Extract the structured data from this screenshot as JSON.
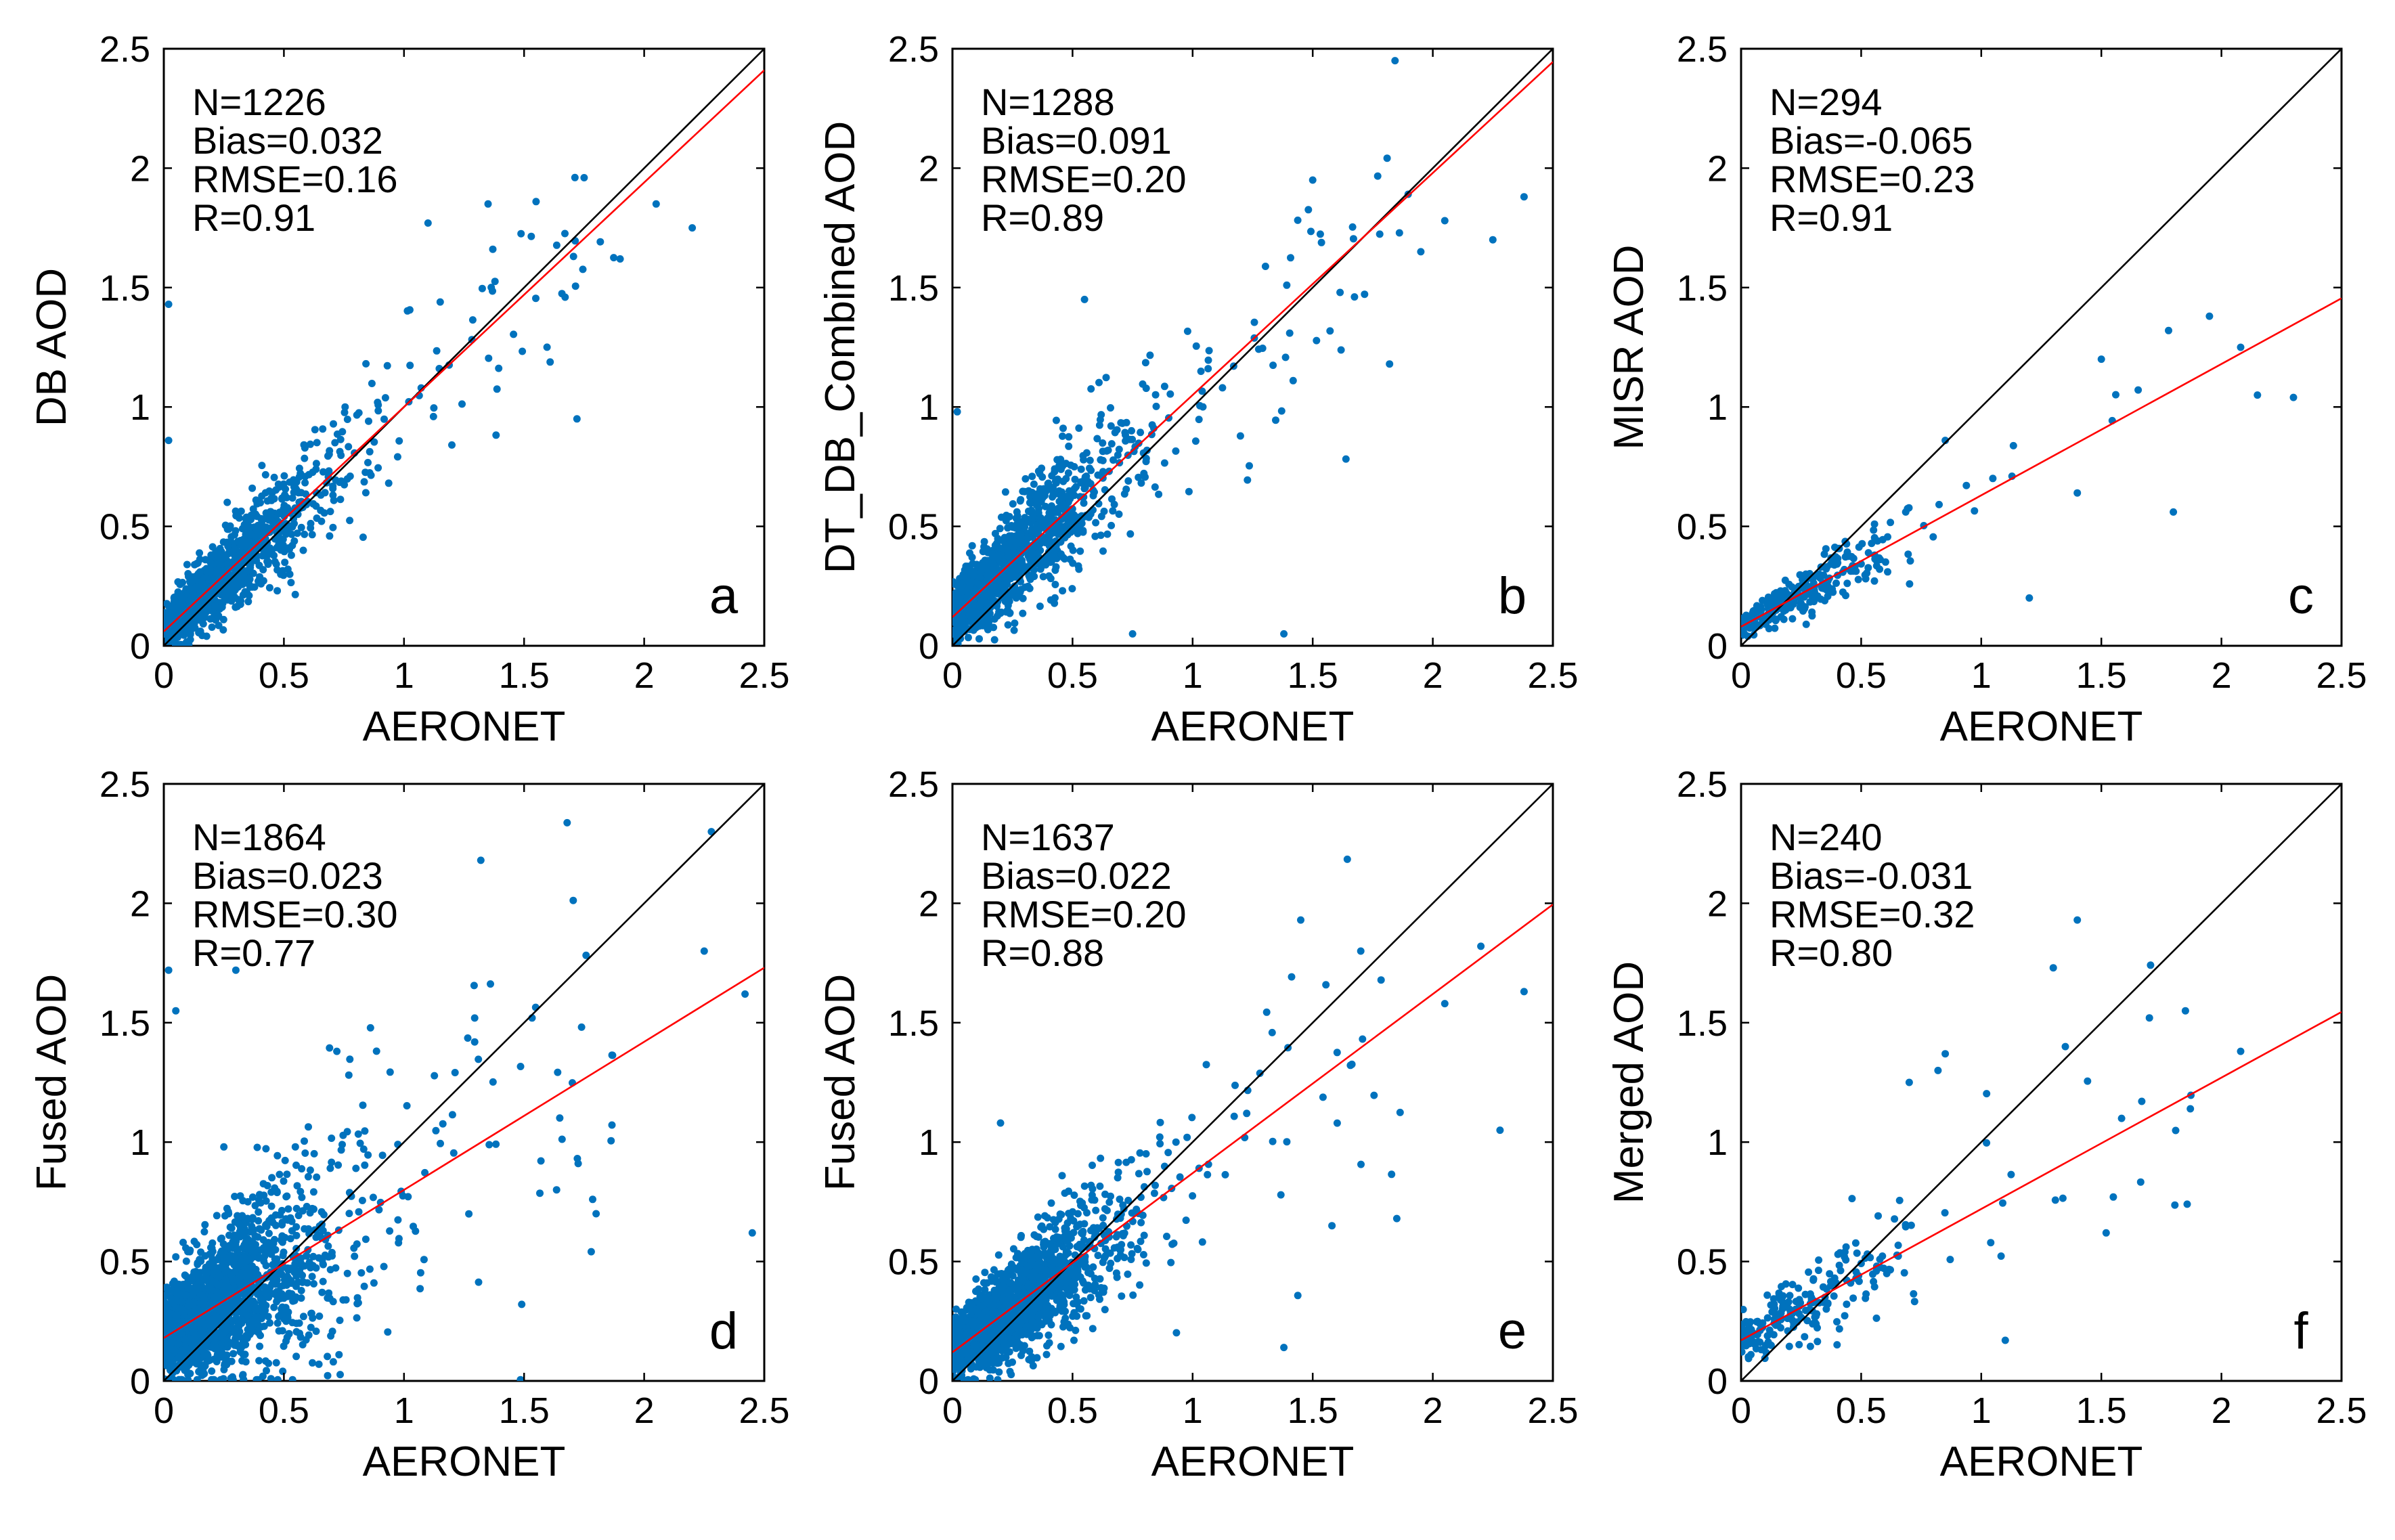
{
  "colors": {
    "points": "#0072BD",
    "fit_line": "#FF0000",
    "one_to_one": "#000000",
    "axes": "#000000"
  },
  "chart_data": [
    {
      "type": "scatter",
      "panel": "a",
      "xlabel": "AERONET",
      "ylabel": "DB AOD",
      "xlim": [
        0,
        2.5
      ],
      "ylim": [
        0,
        2.5
      ],
      "xticks": [
        "0",
        "0.5",
        "1",
        "1.5",
        "2",
        "2.5"
      ],
      "yticks": [
        "0",
        "0.5",
        "1",
        "1.5",
        "2",
        "2.5"
      ],
      "stats": [
        "N=1226",
        "Bias=0.032",
        "RMSE=0.16",
        "R=0.91"
      ],
      "fit": {
        "slope": 0.94,
        "intercept": 0.06
      },
      "n_points": 1226,
      "spread": 0.14,
      "seed": 11,
      "outliers": [
        [
          0.02,
          1.43
        ],
        [
          1.35,
          1.85
        ],
        [
          1.75,
          1.96
        ],
        [
          2.2,
          1.75
        ],
        [
          1.72,
          0.95
        ],
        [
          2.05,
          1.85
        ],
        [
          0.02,
          0.86
        ],
        [
          1.9,
          1.62
        ],
        [
          1.55,
          1.86
        ],
        [
          1.1,
          1.77
        ]
      ]
    },
    {
      "type": "scatter",
      "panel": "b",
      "xlabel": "AERONET",
      "ylabel": "DT_DB_Combined AOD",
      "xlim": [
        0,
        2.5
      ],
      "ylim": [
        0,
        2.5
      ],
      "xticks": [
        "0",
        "0.5",
        "1",
        "1.5",
        "2",
        "2.5"
      ],
      "yticks": [
        "0",
        "0.5",
        "1",
        "1.5",
        "2",
        "2.5"
      ],
      "stats": [
        "N=1288",
        "Bias=0.091",
        "RMSE=0.20",
        "R=0.89"
      ],
      "fit": {
        "slope": 0.93,
        "intercept": 0.12
      },
      "n_points": 1288,
      "spread": 0.17,
      "seed": 23,
      "outliers": [
        [
          1.38,
          0.05
        ],
        [
          0.55,
          1.45
        ],
        [
          2.38,
          1.88
        ],
        [
          1.82,
          1.18
        ],
        [
          2.05,
          1.78
        ],
        [
          1.5,
          1.95
        ],
        [
          2.25,
          1.7
        ],
        [
          0.02,
          0.98
        ],
        [
          1.95,
          1.65
        ],
        [
          0.75,
          0.05
        ]
      ]
    },
    {
      "type": "scatter",
      "panel": "c",
      "xlabel": "AERONET",
      "ylabel": "MISR AOD",
      "xlim": [
        0,
        2.5
      ],
      "ylim": [
        0,
        2.5
      ],
      "xticks": [
        "0",
        "0.5",
        "1",
        "1.5",
        "2",
        "2.5"
      ],
      "yticks": [
        "0",
        "0.5",
        "1",
        "1.5",
        "2",
        "2.5"
      ],
      "stats": [
        "N=294",
        "Bias=-0.065",
        "RMSE=0.23",
        "R=0.91"
      ],
      "fit": {
        "slope": 0.55,
        "intercept": 0.08
      },
      "n_points": 294,
      "spread": 0.08,
      "seed": 37,
      "outliers": [
        [
          1.95,
          1.38
        ],
        [
          2.08,
          1.25
        ],
        [
          2.3,
          1.04
        ],
        [
          1.78,
          1.32
        ],
        [
          1.2,
          0.2
        ],
        [
          1.8,
          0.56
        ],
        [
          1.5,
          1.2
        ],
        [
          1.4,
          0.64
        ],
        [
          2.15,
          1.05
        ],
        [
          0.85,
          0.86
        ]
      ]
    },
    {
      "type": "scatter",
      "panel": "d",
      "xlabel": "AERONET",
      "ylabel": "Fused AOD",
      "xlim": [
        0,
        2.5
      ],
      "ylim": [
        0,
        2.5
      ],
      "xticks": [
        "0",
        "0.5",
        "1",
        "1.5",
        "2",
        "2.5"
      ],
      "yticks": [
        "0",
        "0.5",
        "1",
        "1.5",
        "2",
        "2.5"
      ],
      "stats": [
        "N=1864",
        "Bias=0.023",
        "RMSE=0.30",
        "R=0.77"
      ],
      "fit": {
        "slope": 0.62,
        "intercept": 0.18
      },
      "n_points": 1864,
      "spread": 0.26,
      "seed": 41,
      "outliers": [
        [
          2.28,
          2.3
        ],
        [
          1.32,
          2.18
        ],
        [
          2.45,
          0.62
        ],
        [
          0.02,
          1.72
        ],
        [
          0.05,
          1.55
        ],
        [
          2.25,
          1.8
        ],
        [
          0.3,
          1.72
        ],
        [
          1.8,
          0.7
        ],
        [
          2.42,
          1.62
        ],
        [
          0.25,
          0.98
        ]
      ]
    },
    {
      "type": "scatter",
      "panel": "e",
      "xlabel": "AERONET",
      "ylabel": "Fused AOD",
      "xlim": [
        0,
        2.5
      ],
      "ylim": [
        0,
        2.5
      ],
      "xticks": [
        "0",
        "0.5",
        "1",
        "1.5",
        "2",
        "2.5"
      ],
      "yticks": [
        "0",
        "0.5",
        "1",
        "1.5",
        "2",
        "2.5"
      ],
      "stats": [
        "N=1637",
        "Bias=0.022",
        "RMSE=0.20",
        "R=0.88"
      ],
      "fit": {
        "slope": 0.75,
        "intercept": 0.12
      },
      "n_points": 1637,
      "spread": 0.18,
      "seed": 53,
      "outliers": [
        [
          1.45,
          1.93
        ],
        [
          2.2,
          1.82
        ],
        [
          2.38,
          1.63
        ],
        [
          1.85,
          0.68
        ],
        [
          1.38,
          0.14
        ],
        [
          2.28,
          1.05
        ],
        [
          2.05,
          1.58
        ],
        [
          1.58,
          0.65
        ],
        [
          0.2,
          1.08
        ],
        [
          1.7,
          1.8
        ]
      ]
    },
    {
      "type": "scatter",
      "panel": "f",
      "xlabel": "AERONET",
      "ylabel": "Merged AOD",
      "xlim": [
        0,
        2.5
      ],
      "ylim": [
        0,
        2.5
      ],
      "xticks": [
        "0",
        "0.5",
        "1",
        "1.5",
        "2",
        "2.5"
      ],
      "yticks": [
        "0",
        "0.5",
        "1",
        "1.5",
        "2",
        "2.5"
      ],
      "stats": [
        "N=240",
        "Bias=-0.031",
        "RMSE=0.32",
        "R=0.80"
      ],
      "fit": {
        "slope": 0.55,
        "intercept": 0.17
      },
      "n_points": 240,
      "spread": 0.13,
      "seed": 67,
      "outliers": [
        [
          1.4,
          1.93
        ],
        [
          1.3,
          1.73
        ],
        [
          1.85,
          1.55
        ],
        [
          2.08,
          1.38
        ],
        [
          1.7,
          1.52
        ],
        [
          1.35,
          1.4
        ],
        [
          0.85,
          1.37
        ],
        [
          0.7,
          1.25
        ],
        [
          1.55,
          0.77
        ],
        [
          1.1,
          0.17
        ],
        [
          1.52,
          0.62
        ],
        [
          0.82,
          1.3
        ]
      ]
    }
  ]
}
